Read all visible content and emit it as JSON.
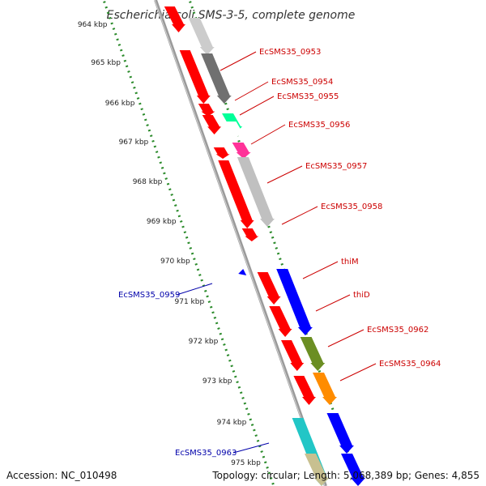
{
  "title": "Escherichia coli SMS-3-5, complete genome",
  "footer": {
    "accession": "Accession: NC_010498",
    "summary": "Topology: circular; Length: 5,068,389 bp; Genes: 4,855"
  },
  "ticks": [
    "964 kbp",
    "965 kbp",
    "966 kbp",
    "967 kbp",
    "968 kbp",
    "969 kbp",
    "970 kbp",
    "971 kbp",
    "972 kbp",
    "973 kbp",
    "974 kbp",
    "975 kbp"
  ],
  "colors": {
    "backbone": "#9a9a9a",
    "dots": "#2a8a2a",
    "forward_label": "#cc0000",
    "reverse_label": "#0000aa"
  },
  "genes": [
    {
      "label": "",
      "strand": "r",
      "color": "#ff0000"
    },
    {
      "label": "",
      "strand": "f",
      "color": "#cccccc"
    },
    {
      "label": "",
      "strand": "r",
      "color": "#ff0000"
    },
    {
      "label": "EcSMS35_0953",
      "strand": "f",
      "color": "#707070"
    },
    {
      "label": "",
      "strand": "r",
      "color": "#ff0000"
    },
    {
      "label": "",
      "strand": "r",
      "color": "#ff0000"
    },
    {
      "label": "EcSMS35_0954",
      "strand": "f",
      "color": "#00ff99"
    },
    {
      "label": "EcSMS35_0955",
      "strand": "f",
      "color": "#ffffff"
    },
    {
      "label": "",
      "strand": "r",
      "color": "#ff0000"
    },
    {
      "label": "EcSMS35_0956",
      "strand": "f",
      "color": "#ff3399"
    },
    {
      "label": "",
      "strand": "r",
      "color": "#ff0000"
    },
    {
      "label": "EcSMS35_0957",
      "strand": "f",
      "color": "#c0c0c0"
    },
    {
      "label": "EcSMS35_0958",
      "strand": "r",
      "color": "#ff0000"
    },
    {
      "label": "EcSMS35_0959",
      "strand": "o",
      "color": "#0000ff"
    },
    {
      "label": "thiM",
      "strand": "f",
      "color": "#0000ff"
    },
    {
      "label": "",
      "strand": "r",
      "color": "#ff0000"
    },
    {
      "label": "thiD",
      "strand": "r",
      "color": "#ff0000"
    },
    {
      "label": "EcSMS35_0962",
      "strand": "f",
      "color": "#6b8e23"
    },
    {
      "label": "",
      "strand": "r",
      "color": "#ff0000"
    },
    {
      "label": "EcSMS35_0964",
      "strand": "f",
      "color": "#ff8c00"
    },
    {
      "label": "",
      "strand": "r",
      "color": "#ff0000"
    },
    {
      "label": "EcSMS35_0963",
      "strand": "o",
      "color": "#22c6c6"
    },
    {
      "label": "",
      "strand": "f",
      "color": "#0000ff"
    },
    {
      "label": "",
      "strand": "o",
      "color": "#c8c090"
    },
    {
      "label": "",
      "strand": "f",
      "color": "#0000ff"
    }
  ]
}
